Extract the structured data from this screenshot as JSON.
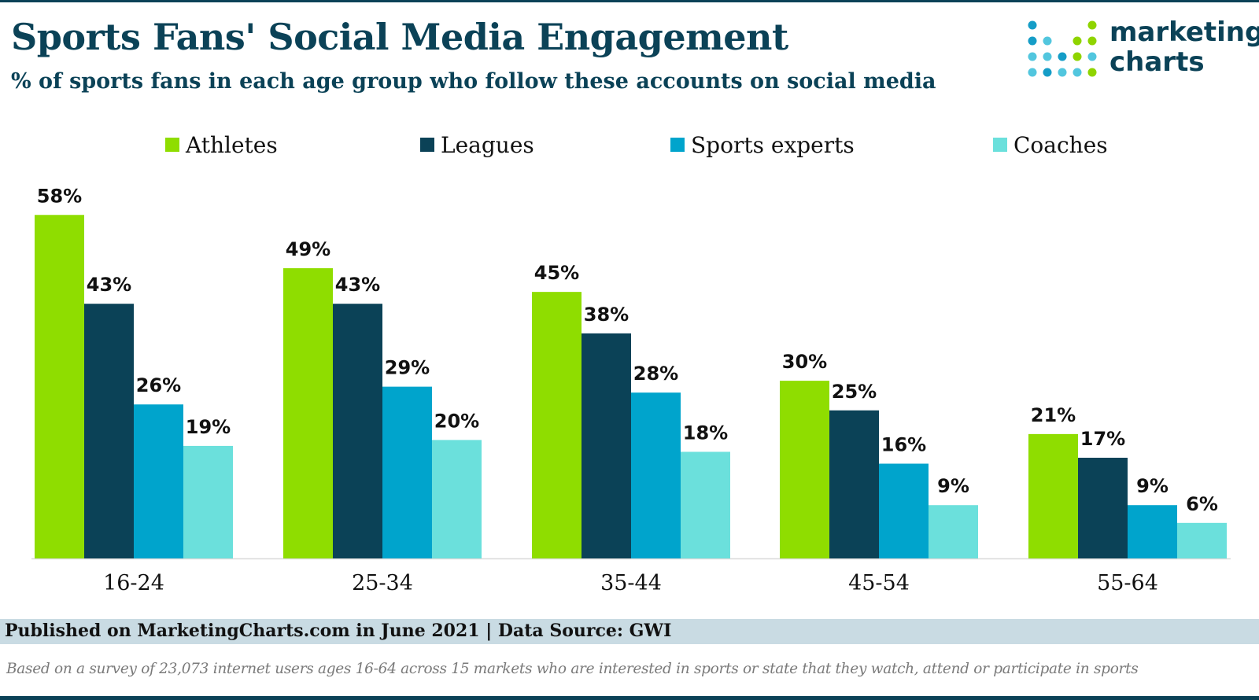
{
  "header": {
    "title": "Sports Fans' Social Media Engagement",
    "subtitle": "% of sports fans in each age group who follow these accounts on social media"
  },
  "logo": {
    "line1": "marketing",
    "line2": "charts",
    "dot_colors": {
      "teal": "#52c6de",
      "green": "#8fd400",
      "blue": "#159dc7"
    }
  },
  "colors": {
    "title": "#0b4257",
    "athletes": "#8fdd00",
    "leagues": "#0b4257",
    "sports_experts": "#00a4cc",
    "coaches": "#6be0dc",
    "footer_band": "#c9dbe3"
  },
  "chart_data": {
    "type": "bar",
    "categories": [
      "16-24",
      "25-34",
      "35-44",
      "45-54",
      "55-64"
    ],
    "series": [
      {
        "name": "Athletes",
        "color": "#8fdd00",
        "values": [
          58,
          49,
          45,
          30,
          21
        ]
      },
      {
        "name": "Leagues",
        "color": "#0b4257",
        "values": [
          43,
          43,
          38,
          25,
          17
        ]
      },
      {
        "name": "Sports experts",
        "color": "#00a4cc",
        "values": [
          26,
          29,
          28,
          16,
          9
        ]
      },
      {
        "name": "Coaches",
        "color": "#6be0dc",
        "values": [
          19,
          20,
          18,
          9,
          6
        ]
      }
    ],
    "value_suffix": "%",
    "ylim": [
      0,
      60
    ],
    "grid": false,
    "legend": "top",
    "data_labels": true
  },
  "footer": {
    "published": "Published on MarketingCharts.com in June 2021 | Data Source: GWI",
    "note": "Based on a survey of 23,073 internet users ages 16-64 across 15 markets who are interested in sports or state that they watch, attend or participate in sports"
  }
}
